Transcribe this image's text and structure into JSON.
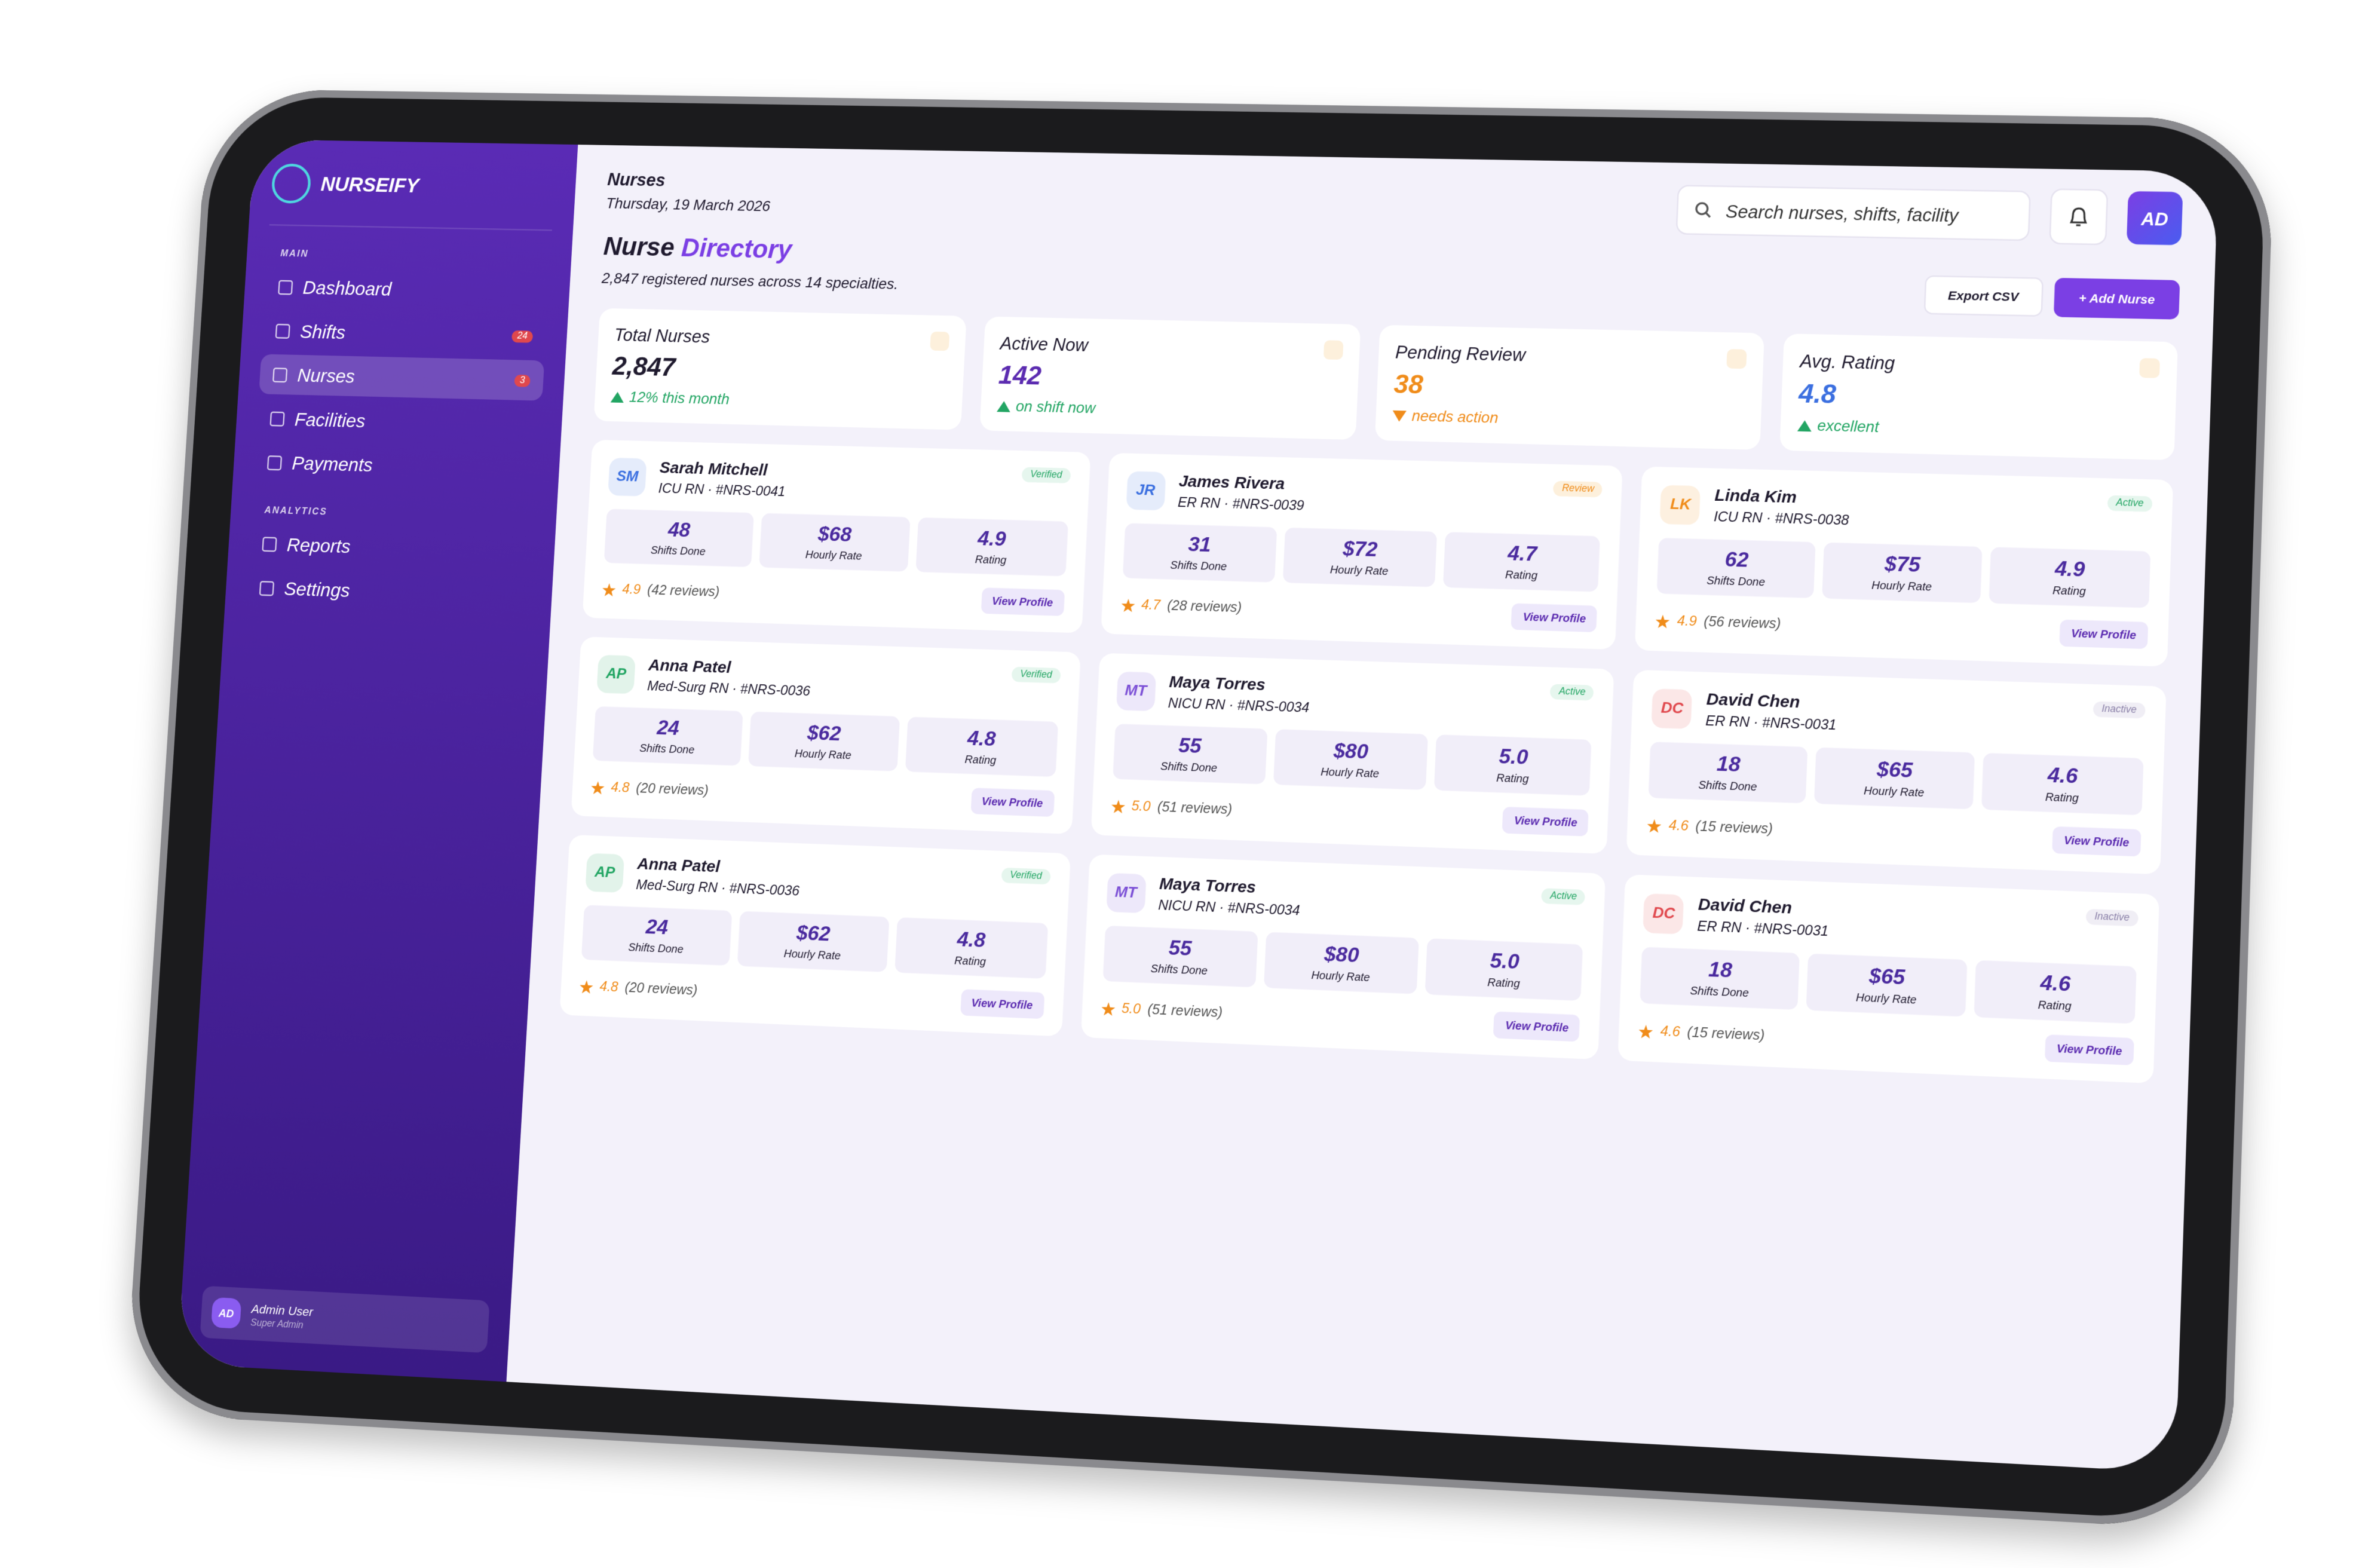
{
  "brand": "NURSEIFY",
  "sidebar": {
    "sections": [
      {
        "title": "MAIN",
        "items": [
          {
            "label": "Dashboard"
          },
          {
            "label": "Shifts",
            "badge": "24"
          },
          {
            "label": "Nurses",
            "badge": "3",
            "active": true
          },
          {
            "label": "Facilities"
          },
          {
            "label": "Payments"
          }
        ]
      },
      {
        "title": "ANALYTICS",
        "items": [
          {
            "label": "Reports"
          },
          {
            "label": "Settings"
          }
        ]
      }
    ],
    "user": {
      "initials": "AD",
      "name": "Admin User",
      "role": "Super Admin"
    }
  },
  "header": {
    "section": "Nurses",
    "date": "Thursday, 19 March 2026",
    "search_placeholder": "Search nurses, shifts, facility",
    "avatar": "AD"
  },
  "page": {
    "title_a": "Nurse",
    "title_b": "Directory",
    "subtitle": "2,847 registered nurses across 14 specialties.",
    "export": "Export CSV",
    "add": "+ Add Nurse"
  },
  "stats": [
    {
      "label": "Total Nurses",
      "value": "2,847",
      "note": "12% this month",
      "trend": "up",
      "color": "#1f1a2e"
    },
    {
      "label": "Active Now",
      "value": "142",
      "note": "on shift now",
      "trend": "up",
      "color": "#5b2bb0"
    },
    {
      "label": "Pending Review",
      "value": "38",
      "note": "needs action",
      "trend": "down",
      "color": "#f08c1a"
    },
    {
      "label": "Avg. Rating",
      "value": "4.8",
      "note": "excellent",
      "trend": "up",
      "color": "#3b6fe0"
    }
  ],
  "nurses": [
    {
      "initials": "SM",
      "name": "Sarah Mitchell",
      "role": "ICU RN · #NRS-0041",
      "status": "Verified",
      "color": "#3b6fe0",
      "stats": [
        {
          "value": "48",
          "label": "Shifts Done"
        },
        {
          "value": "$68",
          "label": "Hourly Rate"
        },
        {
          "value": "4.9",
          "label": "Rating"
        }
      ],
      "rating": "4.9",
      "reviews": "(42 reviews)",
      "action": "View Profile"
    },
    {
      "initials": "JR",
      "name": "James Rivera",
      "role": "ER RN · #NRS-0039",
      "status": "Review",
      "color": "#3b6fe0",
      "stats": [
        {
          "value": "31",
          "label": "Shifts Done"
        },
        {
          "value": "$72",
          "label": "Hourly Rate"
        },
        {
          "value": "4.7",
          "label": "Rating"
        }
      ],
      "rating": "4.7",
      "reviews": "(28 reviews)",
      "action": "View Profile"
    },
    {
      "initials": "LK",
      "name": "Linda Kim",
      "role": "ICU RN · #NRS-0038",
      "status": "Active",
      "color": "#f08c1a",
      "stats": [
        {
          "value": "62",
          "label": "Shifts Done"
        },
        {
          "value": "$75",
          "label": "Hourly Rate"
        },
        {
          "value": "4.9",
          "label": "Rating"
        }
      ],
      "rating": "4.9",
      "reviews": "(56 reviews)",
      "action": "View Profile"
    },
    {
      "initials": "AP",
      "name": "Anna Patel",
      "role": "Med-Surg RN · #NRS-0036",
      "status": "Verified",
      "color": "#22a563",
      "stats": [
        {
          "value": "24",
          "label": "Shifts Done"
        },
        {
          "value": "$62",
          "label": "Hourly Rate"
        },
        {
          "value": "4.8",
          "label": "Rating"
        }
      ],
      "rating": "4.8",
      "reviews": "(20 reviews)",
      "action": "View Profile"
    },
    {
      "initials": "MT",
      "name": "Maya Torres",
      "role": "NICU RN · #NRS-0034",
      "status": "Active",
      "color": "#7b4fd6",
      "stats": [
        {
          "value": "55",
          "label": "Shifts Done"
        },
        {
          "value": "$80",
          "label": "Hourly Rate"
        },
        {
          "value": "5.0",
          "label": "Rating"
        }
      ],
      "rating": "5.0",
      "reviews": "(51 reviews)",
      "action": "View Profile"
    },
    {
      "initials": "DC",
      "name": "David Chen",
      "role": "ER RN · #NRS-0031",
      "status": "Inactive",
      "color": "#e0484d",
      "stats": [
        {
          "value": "18",
          "label": "Shifts Done"
        },
        {
          "value": "$65",
          "label": "Hourly Rate"
        },
        {
          "value": "4.6",
          "label": "Rating"
        }
      ],
      "rating": "4.6",
      "reviews": "(15 reviews)",
      "action": "View Profile"
    },
    {
      "initials": "AP",
      "name": "Anna Patel",
      "role": "Med-Surg RN · #NRS-0036",
      "status": "Verified",
      "color": "#22a563",
      "stats": [
        {
          "value": "24",
          "label": "Shifts Done"
        },
        {
          "value": "$62",
          "label": "Hourly Rate"
        },
        {
          "value": "4.8",
          "label": "Rating"
        }
      ],
      "rating": "4.8",
      "reviews": "(20 reviews)",
      "action": "View Profile"
    },
    {
      "initials": "MT",
      "name": "Maya Torres",
      "role": "NICU RN · #NRS-0034",
      "status": "Active",
      "color": "#7b4fd6",
      "stats": [
        {
          "value": "55",
          "label": "Shifts Done"
        },
        {
          "value": "$80",
          "label": "Hourly Rate"
        },
        {
          "value": "5.0",
          "label": "Rating"
        }
      ],
      "rating": "5.0",
      "reviews": "(51 reviews)",
      "action": "View Profile"
    },
    {
      "initials": "DC",
      "name": "David Chen",
      "role": "ER RN · #NRS-0031",
      "status": "Inactive",
      "color": "#e0484d",
      "stats": [
        {
          "value": "18",
          "label": "Shifts Done"
        },
        {
          "value": "$65",
          "label": "Hourly Rate"
        },
        {
          "value": "4.6",
          "label": "Rating"
        }
      ],
      "rating": "4.6",
      "reviews": "(15 reviews)",
      "action": "View Profile"
    }
  ]
}
